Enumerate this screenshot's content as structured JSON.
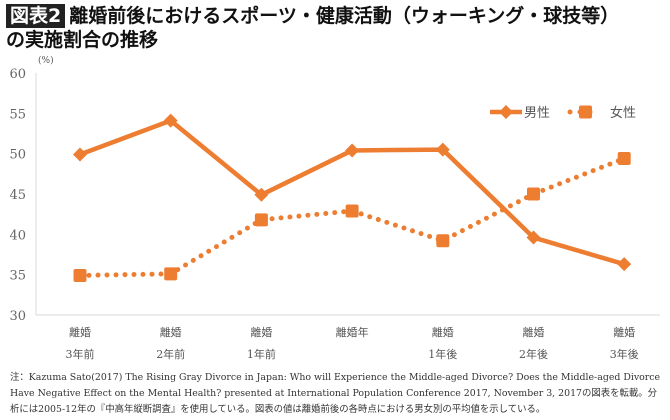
{
  "header": {
    "badge": "図表2",
    "title_line1": "離婚前後におけるスポーツ・健康活動（ウォーキング・球技等）",
    "title_line2": "の実施割合の推移"
  },
  "chart_data": {
    "type": "line",
    "unit_label": "(%)",
    "categories": [
      [
        "離婚",
        "3年前"
      ],
      [
        "離婚",
        "2年前"
      ],
      [
        "離婚",
        "1年前"
      ],
      [
        "離婚年",
        ""
      ],
      [
        "離婚",
        "1年後"
      ],
      [
        "離婚",
        "2年後"
      ],
      [
        "離婚",
        "3年後"
      ]
    ],
    "ylim": [
      30,
      60
    ],
    "yticks": [
      30,
      35,
      40,
      45,
      50,
      55,
      60
    ],
    "grid": false,
    "legend": "top-right",
    "series": [
      {
        "name": "男性",
        "values": [
          49.9,
          54.1,
          44.9,
          50.4,
          50.5,
          39.6,
          36.3
        ],
        "style": "solid",
        "marker": "diamond",
        "color": "#ED7D31"
      },
      {
        "name": "女性",
        "values": [
          34.9,
          35.1,
          41.8,
          42.9,
          39.2,
          45.0,
          49.4
        ],
        "style": "dotted",
        "marker": "square",
        "color": "#ED7D31"
      }
    ]
  },
  "note": "注：Kazuma Sato(2017) The Rising Gray Divorce in Japan: Who will Experience the Middle-aged Divorce? Does the Middle-aged Divorce Have Negative Effect on the Mental Health? presented at International Population Conference 2017, November 3, 2017の図表を転載。分析には2005-12年の『中高年縦断調査』を使用している。図表の値は離婚前後の各時点における男女別の平均値を示している。"
}
